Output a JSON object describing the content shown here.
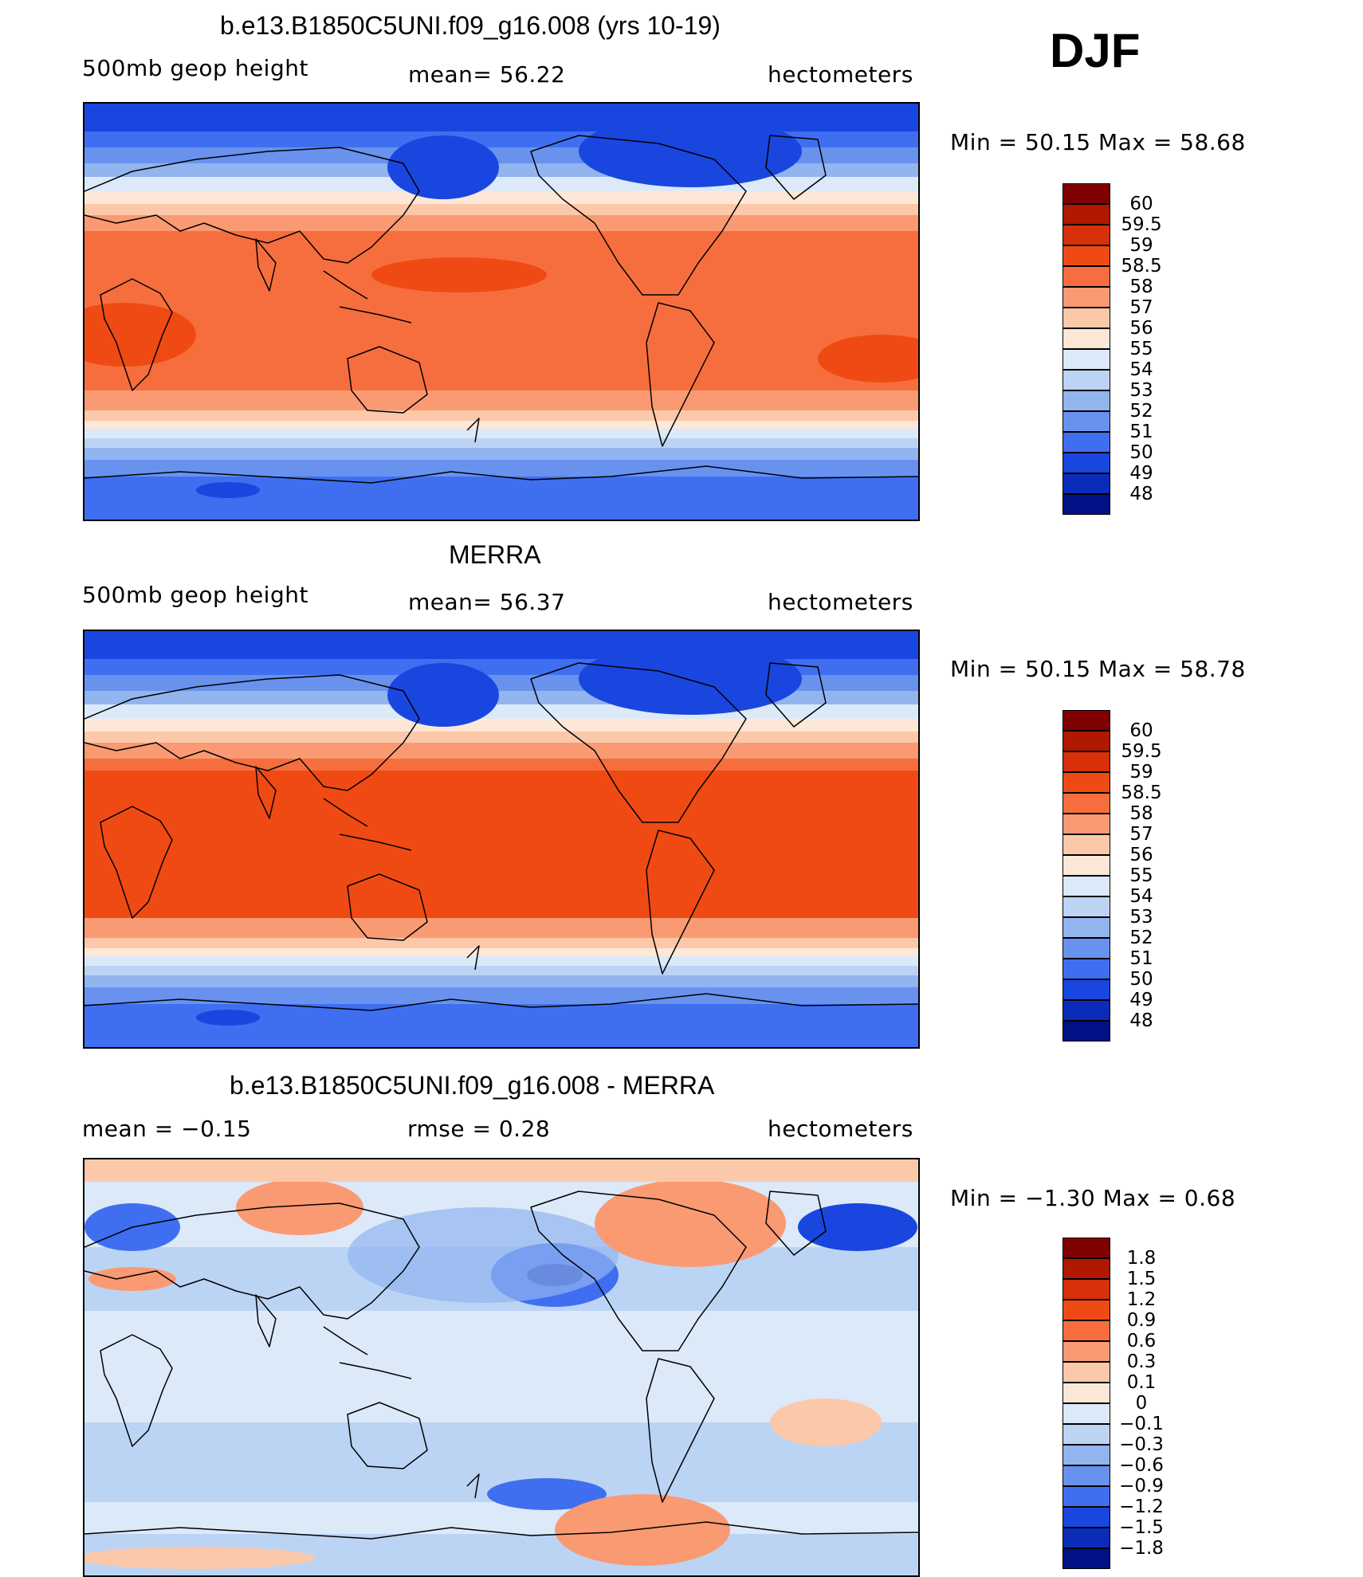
{
  "header": {
    "season": "DJF"
  },
  "panels": [
    {
      "title": "b.e13.B1850C5UNI.f09_g16.008 (yrs 10-19)",
      "left_text": "500mb  geop  height",
      "center_text": "mean=   56.22",
      "right_text": "hectometers",
      "minmax": "Min  =    50.15  Max  =    58.68",
      "scale": "absolute",
      "map_variant": "model"
    },
    {
      "title": "MERRA",
      "left_text": "500mb  geop  height",
      "center_text": "mean=   56.37",
      "right_text": "hectometers",
      "minmax": "Min  =    50.15  Max  =    58.78",
      "scale": "absolute",
      "map_variant": "obs"
    },
    {
      "title": "b.e13.B1850C5UNI.f09_g16.008 - MERRA",
      "left_text": "mean  =    −0.15",
      "center_text": "rmse  =     0.28",
      "right_text": "hectometers",
      "minmax": "Min  =   −1.30  Max  =      0.68",
      "scale": "difference",
      "map_variant": "diff"
    }
  ],
  "colorbars": {
    "absolute": {
      "labels": [
        "60",
        "59.5",
        "59",
        "58.5",
        "58",
        "57",
        "56",
        "55",
        "54",
        "53",
        "52",
        "51",
        "50",
        "49",
        "48"
      ],
      "colors": [
        "#800000",
        "#b01800",
        "#d8300a",
        "#f04a14",
        "#f76e3e",
        "#fa9a72",
        "#fcc8aa",
        "#fde8d8",
        "#dce9f8",
        "#bcd4f4",
        "#92b4ef",
        "#6892ee",
        "#3f6ff0",
        "#1a46e0",
        "#0a2cb8",
        "#001285"
      ]
    },
    "difference": {
      "labels": [
        "1.8",
        "1.5",
        "1.2",
        "0.9",
        "0.6",
        "0.3",
        "0.1",
        "0",
        "−0.1",
        "−0.3",
        "−0.6",
        "−0.9",
        "−1.2",
        "−1.5",
        "−1.8"
      ],
      "colors": [
        "#800000",
        "#b01800",
        "#d8300a",
        "#f04a14",
        "#f76e3e",
        "#fa9a72",
        "#fcc8aa",
        "#fde8d8",
        "#dce9f8",
        "#bcd4f4",
        "#92b4ef",
        "#6892ee",
        "#3f6ff0",
        "#1a46e0",
        "#0a2cb8",
        "#001285"
      ]
    }
  }
}
